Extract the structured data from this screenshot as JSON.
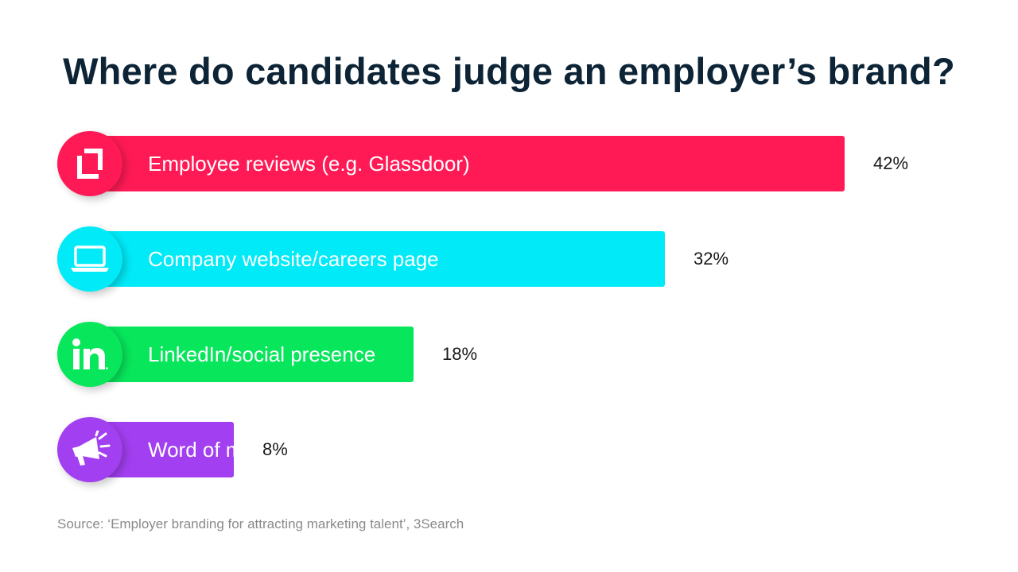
{
  "title": "Where do candidates judge an employer’s brand?",
  "source": "Source: ‘Employer branding for attracting marketing talent’, 3Search",
  "chart_data": {
    "type": "bar",
    "orientation": "horizontal",
    "categories": [
      "Employee reviews (e.g. Glassdoor)",
      "Company website/careers page",
      "LinkedIn/social presence",
      "Word of mouth"
    ],
    "values": [
      42,
      32,
      18,
      8
    ],
    "value_labels": [
      "42%",
      "32%",
      "18%",
      "8%"
    ],
    "unit": "%",
    "colors": [
      "#ff1a56",
      "#00eaf8",
      "#08e65c",
      "#a23ff0"
    ],
    "icons": [
      "glassdoor-icon",
      "laptop-icon",
      "linkedin-icon",
      "megaphone-icon"
    ],
    "grid": false,
    "legend": "none"
  }
}
